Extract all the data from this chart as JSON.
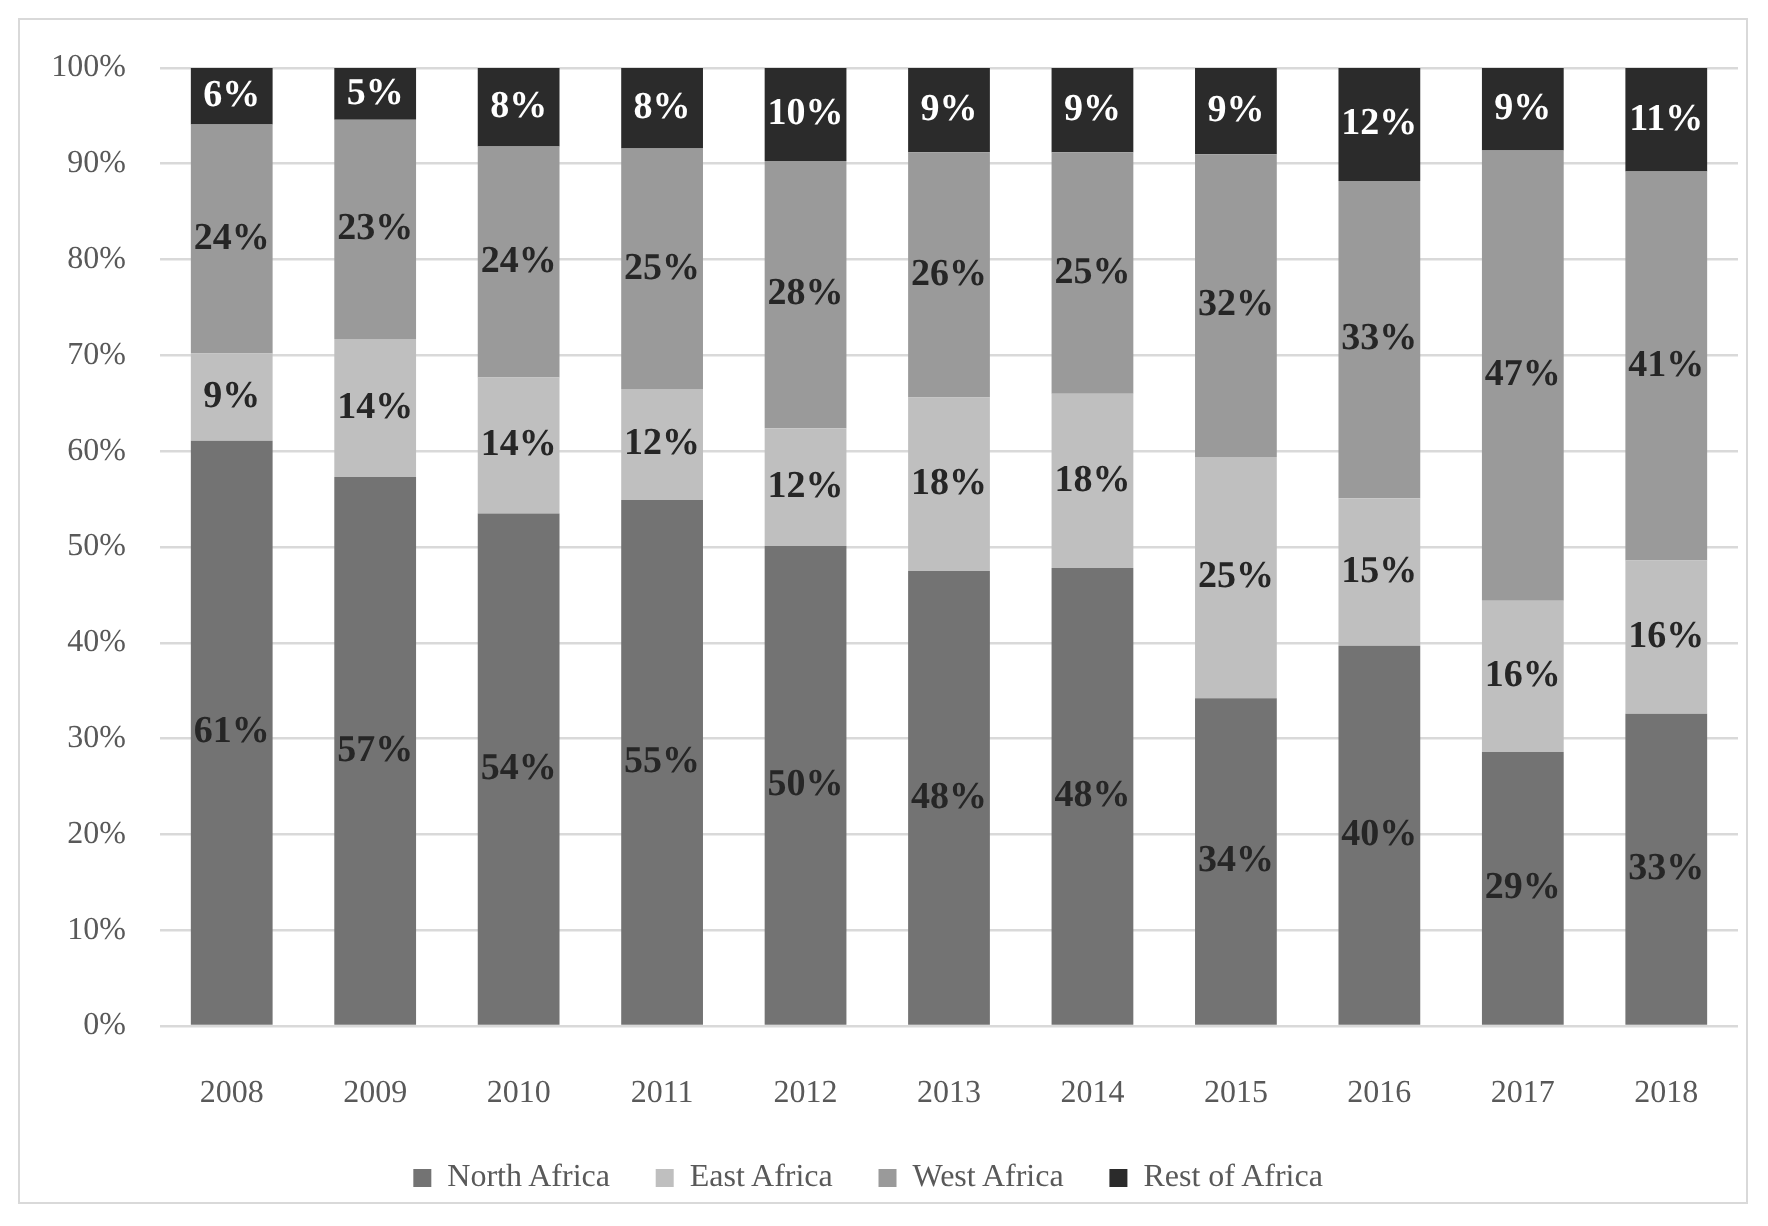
{
  "chart_data": {
    "type": "bar",
    "stacked": true,
    "categories": [
      "2008",
      "2009",
      "2010",
      "2011",
      "2012",
      "2013",
      "2014",
      "2015",
      "2016",
      "2017",
      "2018"
    ],
    "series": [
      {
        "name": "North Africa",
        "color": "#737373",
        "values": [
          61.1,
          57.3,
          53.5,
          54.9,
          50.1,
          47.5,
          47.8,
          34.2,
          39.7,
          28.6,
          32.6
        ],
        "value_labels": [
          "61%",
          "57%",
          "54%",
          "55%",
          "50%",
          "48%",
          "48%",
          "34%",
          "40%",
          "29%",
          "33%"
        ]
      },
      {
        "name": "East Africa",
        "color": "#bfbfbf",
        "values": [
          9.1,
          14.4,
          14.2,
          11.6,
          12.3,
          18.1,
          18.2,
          25.2,
          15.4,
          15.8,
          16.0
        ],
        "value_labels": [
          "9%",
          "14%",
          "14%",
          "12%",
          "12%",
          "18%",
          "18%",
          "25%",
          "15%",
          "16%",
          "16%"
        ]
      },
      {
        "name": "West Africa",
        "color": "#9a9a9a",
        "values": [
          23.9,
          22.9,
          24.1,
          25.1,
          27.9,
          25.6,
          25.2,
          31.6,
          33.1,
          47.0,
          40.6
        ],
        "value_labels": [
          "24%",
          "23%",
          "24%",
          "25%",
          "28%",
          "26%",
          "25%",
          "32%",
          "33%",
          "47%",
          "41%"
        ]
      },
      {
        "name": "Rest of Africa",
        "color": "#2b2b2b",
        "values": [
          5.9,
          5.4,
          8.2,
          8.4,
          9.7,
          8.8,
          8.8,
          9.0,
          11.8,
          8.6,
          10.8
        ],
        "value_labels": [
          "6%",
          "5%",
          "8%",
          "8%",
          "10%",
          "9%",
          "9%",
          "9%",
          "12%",
          "9%",
          "11%"
        ]
      }
    ],
    "ylim": [
      0,
      100
    ],
    "yticks": [
      {
        "value": 0,
        "label": "0%"
      },
      {
        "value": 10,
        "label": "10%"
      },
      {
        "value": 20,
        "label": "20%"
      },
      {
        "value": 30,
        "label": "30%"
      },
      {
        "value": 40,
        "label": "40%"
      },
      {
        "value": 50,
        "label": "50%"
      },
      {
        "value": 60,
        "label": "60%"
      },
      {
        "value": 70,
        "label": "70%"
      },
      {
        "value": 80,
        "label": "80%"
      },
      {
        "value": 90,
        "label": "90%"
      },
      {
        "value": 100,
        "label": "100%"
      }
    ],
    "grid": "y",
    "legend": "bottom"
  }
}
